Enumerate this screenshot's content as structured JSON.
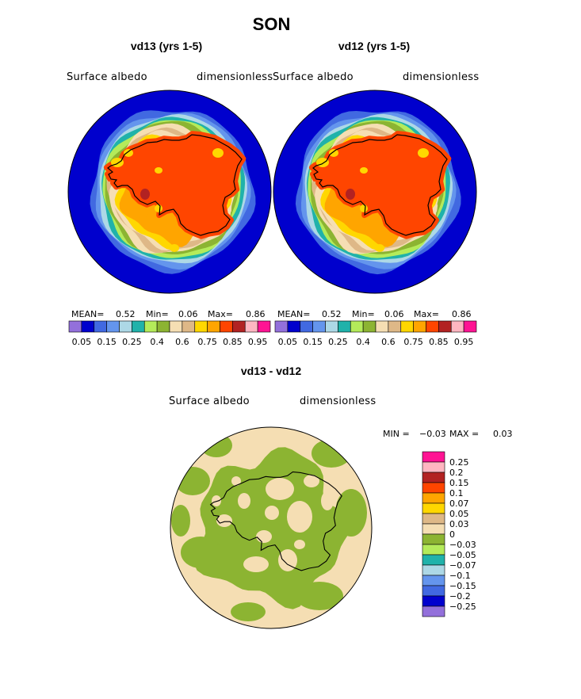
{
  "season": "SON",
  "panels": [
    {
      "title": "vd13 (yrs 1-5)",
      "field_label": "Surface albedo",
      "units_label": "dimensionless",
      "stats": {
        "mean_label": "MEAN=",
        "mean": "0.52",
        "min_label": "Min=",
        "min": "0.06",
        "max_label": "Max=",
        "max": "0.86"
      }
    },
    {
      "title": "vd12 (yrs 1-5)",
      "field_label": "Surface albedo",
      "units_label": "dimensionless",
      "stats": {
        "mean_label": "MEAN=",
        "mean": "0.52",
        "min_label": "Min=",
        "min": "0.06",
        "max_label": "Max=",
        "max": "0.86"
      }
    }
  ],
  "colorbar": {
    "colors": [
      "#9370db",
      "#0000cd",
      "#4169e1",
      "#6495ed",
      "#add8e6",
      "#20b2aa",
      "#b4eb5a",
      "#8cb432",
      "#f5deb3",
      "#deb887",
      "#ffd700",
      "#ffa500",
      "#ff4500",
      "#b22222",
      "#ffb6c1",
      "#ff1493"
    ],
    "tick_labels": [
      "0.05",
      "0.15",
      "0.25",
      "0.4",
      "0.6",
      "0.75",
      "0.85",
      "0.95"
    ]
  },
  "diff": {
    "title": "vd13 - vd12",
    "field_label": "Surface albedo",
    "units_label": "dimensionless",
    "stats": {
      "min_label": "MIN =",
      "min": "−0.03",
      "max_label": "MAX =",
      "max": "0.03"
    },
    "colorbar_colors": [
      "#ff1493",
      "#ffb6c1",
      "#b22222",
      "#ff4500",
      "#ffa500",
      "#ffd700",
      "#deb887",
      "#f5deb3",
      "#8cb432",
      "#b4eb5a",
      "#20b2aa",
      "#add8e6",
      "#6495ed",
      "#4169e1",
      "#0000cd",
      "#9370db"
    ],
    "colorbar_labels": [
      "0.25",
      "0.2",
      "0.15",
      "0.1",
      "0.07",
      "0.05",
      "0.03",
      "0",
      "−0.03",
      "−0.05",
      "−0.07",
      "−0.1",
      "−0.15",
      "−0.2",
      "−0.25"
    ]
  }
}
